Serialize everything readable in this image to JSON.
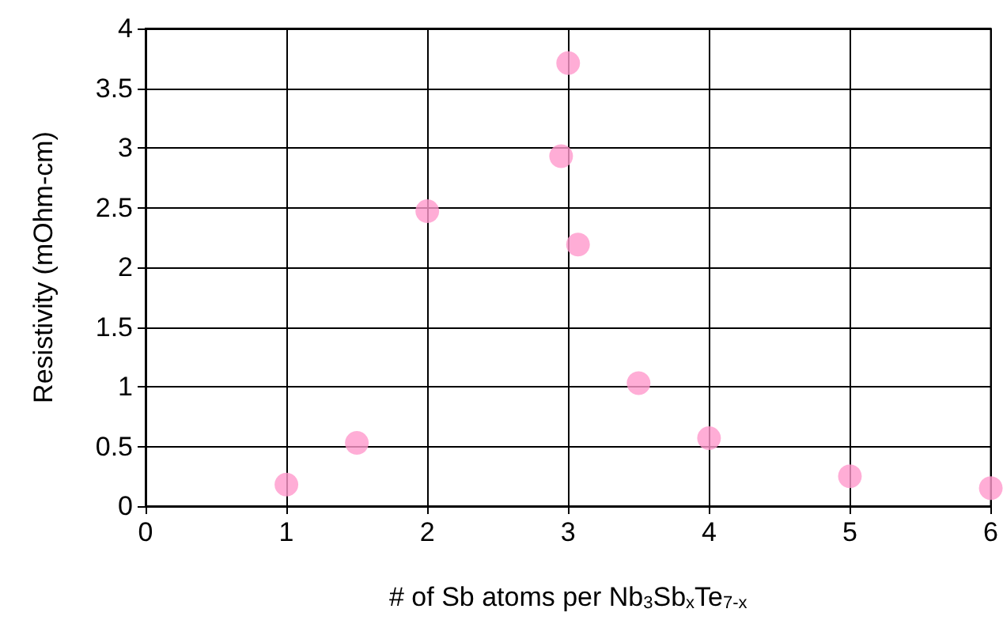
{
  "chart_data": {
    "type": "scatter",
    "xlabel": "# of Sb atoms per Nb$_{3}$Sb$_{x}$Te$_{7-x}$",
    "ylabel": "Resistivity (mOhm-cm)",
    "x": [
      1,
      1.5,
      2,
      2.95,
      3,
      3.07,
      3.5,
      4,
      5,
      6
    ],
    "values": [
      0.18,
      0.53,
      2.47,
      2.93,
      3.71,
      2.19,
      1.03,
      0.57,
      0.25,
      0.15
    ],
    "color": "#ff99cc",
    "marker": "circle",
    "xlim": [
      0,
      6
    ],
    "xticks": [
      0,
      1,
      2,
      3,
      4,
      5,
      6
    ],
    "ylim": [
      0,
      4
    ],
    "yticks": [
      0,
      0.5,
      1,
      1.5,
      2,
      2.5,
      3,
      3.5,
      4
    ],
    "grid": true
  }
}
